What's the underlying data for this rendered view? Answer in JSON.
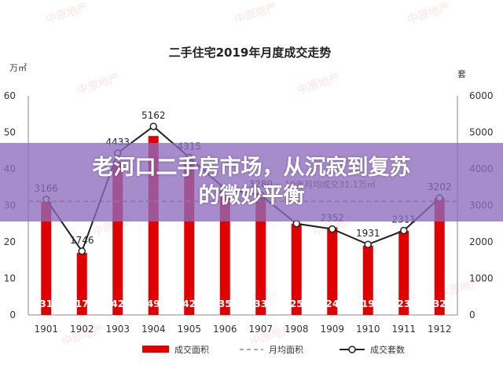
{
  "headline": {
    "line1": "老河口二手房市场，从沉寂到复苏",
    "line2": "的微妙平衡"
  },
  "watermark_text": "中原地产",
  "colors": {
    "bar": "#e00000",
    "line": "#222222",
    "avg": "#8a8a8a",
    "banner": "#8e6cbe"
  },
  "chart_data": {
    "type": "bar",
    "title": "二手住宅2019年月度成交走势",
    "y_left_unit": "万㎡",
    "y_right_unit": "套",
    "ylim_left": [
      0,
      60
    ],
    "ylim_right": [
      0,
      6000
    ],
    "y_left_ticks": [
      "0",
      "10",
      "20",
      "30",
      "40",
      "50",
      "60"
    ],
    "y_right_ticks": [
      "0",
      "1000",
      "2000",
      "3000",
      "4000",
      "5000",
      "6000"
    ],
    "categories": [
      "1901",
      "1902",
      "1903",
      "1904",
      "1905",
      "1906",
      "1907",
      "1908",
      "1909",
      "1910",
      "1911",
      "1912"
    ],
    "series": [
      {
        "name": "成交面积",
        "type": "bar",
        "axis": "left",
        "values": [
          31,
          17,
          42,
          49,
          42,
          35,
          33,
          25,
          24,
          19,
          23,
          32
        ],
        "labels": [
          "31",
          "17",
          "42",
          "49",
          "42",
          "35",
          "33",
          "25",
          "24",
          "19",
          "23",
          "32"
        ]
      },
      {
        "name": "月均面积",
        "type": "line-dashed",
        "axis": "left",
        "value": 31.1,
        "annotation": "19年月均成交31.1万㎡"
      },
      {
        "name": "成交套数",
        "type": "line",
        "axis": "right",
        "values": [
          3166,
          1746,
          4433,
          5162,
          4315,
          3450,
          3280,
          2500,
          2352,
          1931,
          2311,
          3202
        ],
        "labels": [
          "3166",
          "1746",
          "4433",
          "5162",
          "4315",
          "",
          "3280",
          "",
          "2352",
          "1931",
          "2311",
          "3202"
        ]
      }
    ],
    "legend_position": "bottom"
  }
}
